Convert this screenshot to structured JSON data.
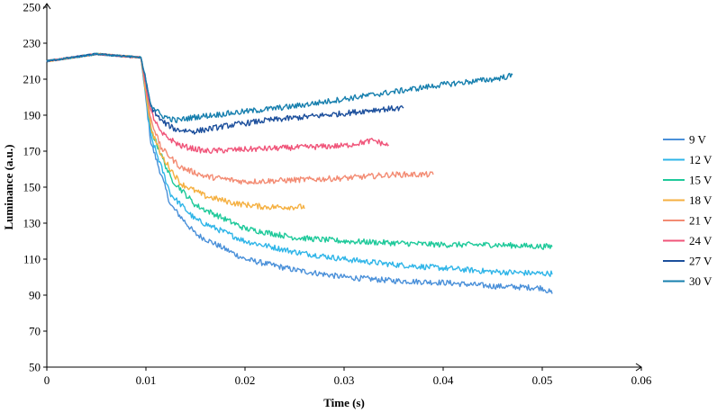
{
  "chart_data": {
    "type": "line",
    "xlabel": "Time (s)",
    "ylabel": "Luminance (a.u.)",
    "xlim": [
      0,
      0.06
    ],
    "ylim": [
      50,
      250
    ],
    "x_ticks": [
      0,
      0.01,
      0.02,
      0.03,
      0.04,
      0.05,
      0.06
    ],
    "x_tick_labels": [
      "0",
      "0.01",
      "0.02",
      "0.03",
      "0.04",
      "0.05",
      "0.06"
    ],
    "y_ticks": [
      50,
      70,
      90,
      110,
      130,
      150,
      170,
      190,
      210,
      230,
      250
    ],
    "y_tick_labels": [
      "50",
      "70",
      "90",
      "110",
      "130",
      "150",
      "170",
      "190",
      "210",
      "230",
      "250"
    ],
    "grid": false,
    "legend_position": "right",
    "series": [
      {
        "name": "9 V",
        "color": "#4a90d9",
        "end_x": 0.051,
        "x": [
          0,
          0.005,
          0.0095,
          0.0105,
          0.0125,
          0.015,
          0.02,
          0.025,
          0.03,
          0.035,
          0.04,
          0.045,
          0.05,
          0.051
        ],
        "y": [
          220,
          224,
          222,
          175,
          140,
          124,
          110,
          104,
          100,
          98,
          97,
          95,
          94,
          91
        ]
      },
      {
        "name": "12 V",
        "color": "#2fb5e8",
        "end_x": 0.051,
        "x": [
          0,
          0.005,
          0.0095,
          0.0105,
          0.0125,
          0.015,
          0.02,
          0.025,
          0.03,
          0.035,
          0.04,
          0.045,
          0.05,
          0.051
        ],
        "y": [
          220,
          224,
          222,
          178,
          146,
          132,
          120,
          114,
          110,
          107,
          105,
          103,
          102,
          102
        ]
      },
      {
        "name": "15 V",
        "color": "#1ec99a",
        "end_x": 0.051,
        "x": [
          0,
          0.005,
          0.0095,
          0.0105,
          0.0125,
          0.015,
          0.02,
          0.025,
          0.03,
          0.035,
          0.04,
          0.045,
          0.05,
          0.051
        ],
        "y": [
          220,
          224,
          222,
          182,
          155,
          140,
          127,
          122,
          120,
          119,
          118,
          118,
          117,
          117
        ]
      },
      {
        "name": "18 V",
        "color": "#f5b041",
        "end_x": 0.026,
        "x": [
          0,
          0.005,
          0.0095,
          0.0105,
          0.0115,
          0.0135,
          0.016,
          0.019,
          0.022,
          0.026
        ],
        "y": [
          220,
          224,
          222,
          183,
          168,
          152,
          145,
          141,
          139,
          139
        ]
      },
      {
        "name": "21 V",
        "color": "#f38b73",
        "end_x": 0.039,
        "x": [
          0,
          0.005,
          0.0095,
          0.0105,
          0.0115,
          0.0135,
          0.016,
          0.02,
          0.025,
          0.03,
          0.035,
          0.039
        ],
        "y": [
          220,
          224,
          222,
          188,
          172,
          161,
          156,
          153,
          154,
          155,
          157,
          157
        ]
      },
      {
        "name": "24 V",
        "color": "#f0557a",
        "end_x": 0.0345,
        "x": [
          0,
          0.005,
          0.0095,
          0.0105,
          0.0115,
          0.0135,
          0.016,
          0.02,
          0.025,
          0.03,
          0.033,
          0.0345
        ],
        "y": [
          220,
          224,
          222,
          192,
          180,
          173,
          170,
          171,
          172,
          173,
          176,
          173
        ]
      },
      {
        "name": "27 V",
        "color": "#1c4f9c",
        "end_x": 0.036,
        "x": [
          0,
          0.005,
          0.0095,
          0.0105,
          0.0115,
          0.013,
          0.015,
          0.018,
          0.022,
          0.026,
          0.03,
          0.033,
          0.036
        ],
        "y": [
          220,
          224,
          222,
          195,
          187,
          182,
          181,
          184,
          187,
          189,
          191,
          193,
          194
        ]
      },
      {
        "name": "30 V",
        "color": "#167fae",
        "end_x": 0.047,
        "x": [
          0,
          0.005,
          0.0095,
          0.0105,
          0.0115,
          0.013,
          0.015,
          0.02,
          0.025,
          0.03,
          0.035,
          0.04,
          0.045,
          0.047
        ],
        "y": [
          220,
          224,
          222,
          196,
          190,
          187,
          189,
          192,
          195,
          199,
          203,
          207,
          210,
          212
        ]
      }
    ]
  }
}
